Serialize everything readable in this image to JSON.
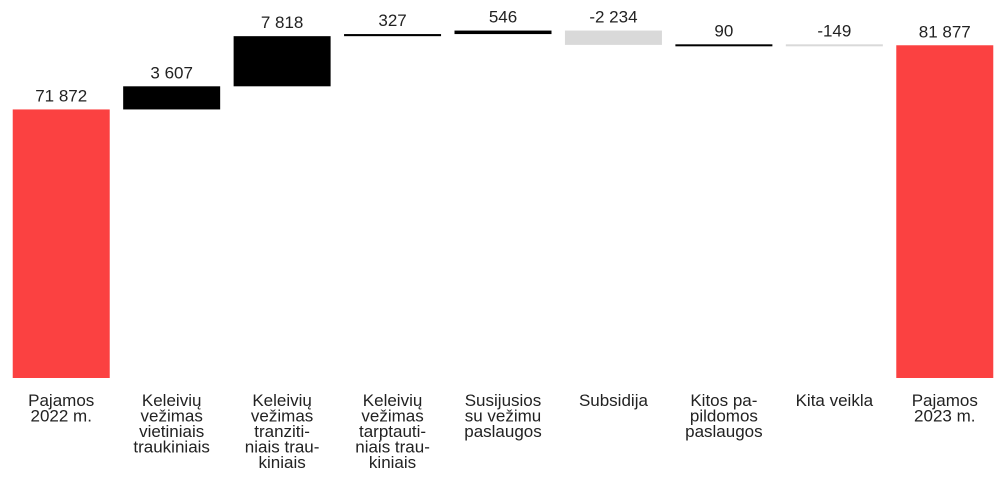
{
  "chart_data": {
    "type": "waterfall",
    "categories": [
      [
        "Pajamos",
        "2022 m."
      ],
      [
        "Keleivių",
        "vežimas",
        "vietiniais",
        "traukiniais"
      ],
      [
        "Keleivių",
        "vežimas",
        "tranziti-",
        "niais trau-",
        "kiniais"
      ],
      [
        "Keleivių",
        "vežimas",
        "tarptauti-",
        "niais trau-",
        "kiniais"
      ],
      [
        "Susijusios",
        "su vežimu",
        "paslaugos"
      ],
      [
        "Subsidija"
      ],
      [
        "Kitos pa-",
        "pildomos",
        "paslaugos"
      ],
      [
        "Kita veikla"
      ],
      [
        "Pajamos",
        "2023 m."
      ]
    ],
    "values": [
      71872,
      3607,
      7818,
      327,
      546,
      -2234,
      90,
      -149,
      81877
    ],
    "value_labels": [
      "71 872",
      "3 607",
      "7 818",
      "327",
      "546",
      "-2 234",
      "90",
      "-149",
      "81 877"
    ],
    "ylim": [
      30000,
      88000
    ],
    "total_color": "#fb4141",
    "increase_color": "#000000",
    "decrease_color": "#d9d9d9"
  }
}
